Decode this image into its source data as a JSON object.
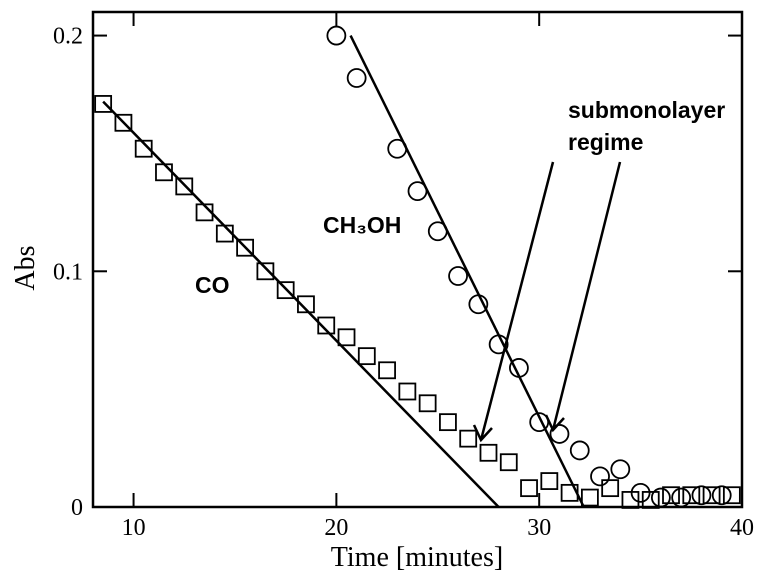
{
  "chart_data": {
    "type": "scatter",
    "xlabel": "Time [minutes]",
    "ylabel": "Abs",
    "xlim": [
      8,
      40
    ],
    "ylim": [
      0,
      0.21
    ],
    "xticks": [
      10,
      20,
      30,
      40
    ],
    "yticks": [
      0,
      0.1,
      0.2
    ],
    "annotation": [
      "submonolayer",
      "regime"
    ],
    "series": [
      {
        "name": "CO",
        "marker": "square",
        "color": "#000000",
        "x": [
          8.5,
          9.5,
          10.5,
          11.5,
          12.5,
          13.5,
          14.5,
          15.5,
          16.5,
          17.5,
          18.5,
          19.5,
          20.5,
          21.5,
          22.5,
          23.5,
          24.5,
          25.5,
          26.5,
          27.5,
          28.5,
          29.5,
          30.5,
          31.5,
          32.5,
          33.5,
          34.5,
          35.5,
          36.5,
          37.5,
          38.5,
          39.5
        ],
        "values": [
          0.171,
          0.163,
          0.152,
          0.142,
          0.136,
          0.125,
          0.116,
          0.11,
          0.1,
          0.092,
          0.086,
          0.077,
          0.072,
          0.064,
          0.058,
          0.049,
          0.044,
          0.036,
          0.029,
          0.023,
          0.019,
          0.008,
          0.011,
          0.006,
          0.004,
          0.008,
          0.003,
          0.003,
          0.005,
          0.005,
          0.005,
          0.005
        ],
        "fit": {
          "x": [
            8.5,
            28
          ],
          "values": [
            0.172,
            0
          ]
        }
      },
      {
        "name": "CH₃OH",
        "marker": "circle",
        "color": "#000000",
        "x": [
          20,
          21,
          23,
          24,
          25,
          26,
          27,
          28,
          29,
          30,
          31,
          32,
          33,
          34,
          35,
          36,
          37,
          38,
          39
        ],
        "values": [
          0.2,
          0.182,
          0.152,
          0.134,
          0.117,
          0.098,
          0.086,
          0.069,
          0.059,
          0.036,
          0.031,
          0.024,
          0.013,
          0.016,
          0.006,
          0.004,
          0.004,
          0.005,
          0.005
        ],
        "fit": {
          "x": [
            20.7,
            32.2
          ],
          "values": [
            0.2,
            0
          ]
        }
      }
    ]
  }
}
